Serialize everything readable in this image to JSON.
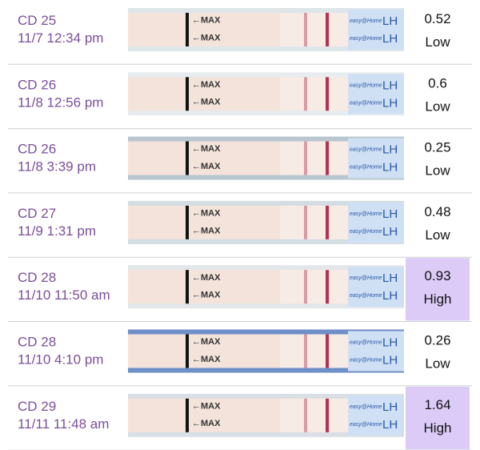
{
  "strip_text": {
    "max": "←MAX",
    "brand": "easy@Home",
    "lh": "LH"
  },
  "rows": [
    {
      "cycle_day": "CD 25",
      "time": "11/7 12:34 pm",
      "value": 0.52,
      "level": "Low",
      "highlight": false
    },
    {
      "cycle_day": "CD 26",
      "time": "11/8 12:56 pm",
      "value": 0.6,
      "level": "Low",
      "highlight": false
    },
    {
      "cycle_day": "CD 26",
      "time": "11/8 3:39 pm",
      "value": 0.25,
      "level": "Low",
      "highlight": false
    },
    {
      "cycle_day": "CD 27",
      "time": "11/9 1:31 pm",
      "value": 0.48,
      "level": "Low",
      "highlight": false
    },
    {
      "cycle_day": "CD 28",
      "time": "11/10 11:50 am",
      "value": 0.93,
      "level": "High",
      "highlight": true
    },
    {
      "cycle_day": "CD 28",
      "time": "11/10 4:10 pm",
      "value": 0.26,
      "level": "Low",
      "highlight": false
    },
    {
      "cycle_day": "CD 29",
      "time": "11/11 11:48 am",
      "value": 1.64,
      "level": "High",
      "highlight": true
    }
  ]
}
